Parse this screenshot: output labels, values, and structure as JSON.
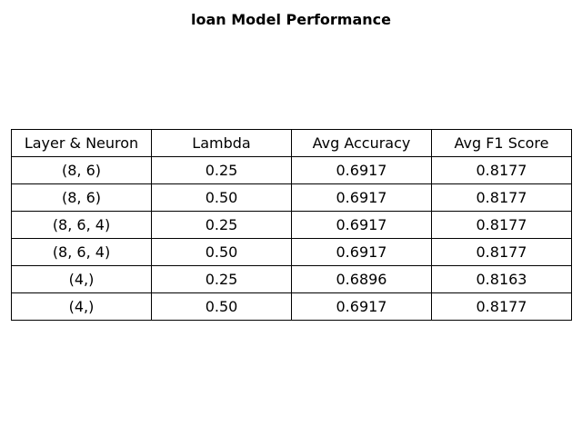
{
  "chart_data": {
    "type": "table",
    "title": "loan Model Performance",
    "columns": [
      "Layer & Neuron",
      "Lambda",
      "Avg Accuracy",
      "Avg F1 Score"
    ],
    "rows": [
      [
        "(8, 6)",
        "0.25",
        "0.6917",
        "0.8177"
      ],
      [
        "(8, 6)",
        "0.50",
        "0.6917",
        "0.8177"
      ],
      [
        "(8, 6, 4)",
        "0.25",
        "0.6917",
        "0.8177"
      ],
      [
        "(8, 6, 4)",
        "0.50",
        "0.6917",
        "0.8177"
      ],
      [
        "(4,)",
        "0.25",
        "0.6896",
        "0.8163"
      ],
      [
        "(4,)",
        "0.50",
        "0.6917",
        "0.8177"
      ]
    ],
    "border_color": "#000000",
    "background_color": "#ffffff"
  }
}
